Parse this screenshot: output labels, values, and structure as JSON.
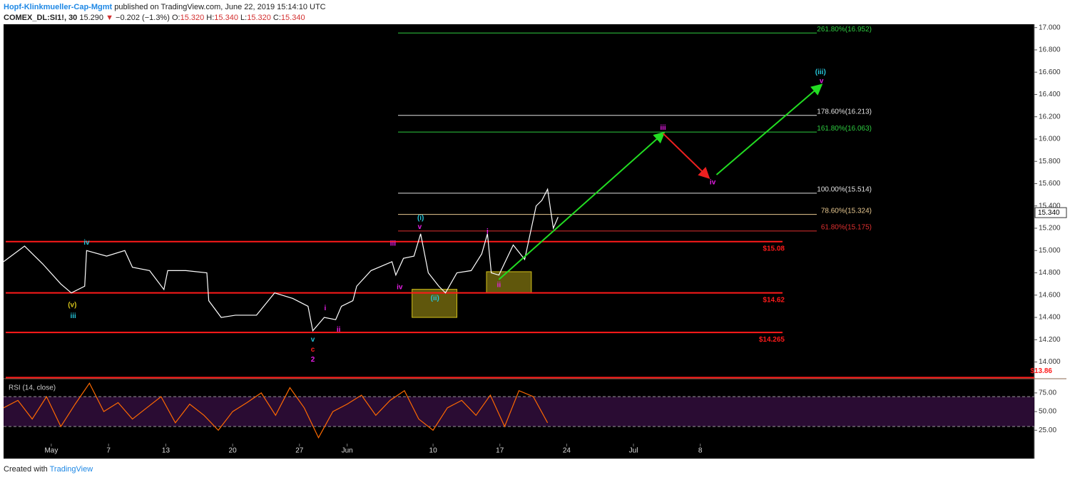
{
  "header": {
    "author": "Hopf-Klinkmueller-Cap-Mgmt",
    "published": "published on TradingView.com, June 22, 2019 15:14:10 UTC",
    "symbol": "COMEX_DL:SI1!, 30",
    "price": "15.290",
    "arrow": "▼",
    "change": "−0.202 (−1.3%)",
    "o_label": "O:",
    "o": "15.320",
    "h_label": "H:",
    "h": "15.340",
    "l_label": "L:",
    "l": "15.320",
    "c_label": "C:",
    "c": "15.340"
  },
  "footer": {
    "created": "Created with",
    "brand": "TradingView"
  },
  "chart_data": [
    {
      "type": "line",
      "color": "#ffffff",
      "x": [
        -4,
        -1.8,
        0.1,
        2,
        3.1,
        4.5,
        4.7,
        6.8,
        8.7,
        9.5,
        11.3,
        12.8,
        13.2,
        15.1,
        17.3,
        17.5,
        18.8,
        20.3,
        22.5,
        24.4,
        26.3,
        27.9,
        28.4,
        29.6,
        30.8,
        31.4,
        32.6,
        33,
        34.5,
        36.7,
        37.1,
        37.9,
        39,
        39.7,
        40.5,
        41.6,
        42.3,
        43.5,
        45,
        46.1,
        46.7,
        47.1,
        47.9,
        49.4,
        50.6,
        51.3,
        51.8,
        52.4,
        53,
        53.6,
        54.1
      ],
      "values": [
        14.9,
        15.04,
        14.88,
        14.7,
        14.62,
        14.68,
        15,
        14.95,
        15,
        14.85,
        14.82,
        14.65,
        14.82,
        14.82,
        14.8,
        14.55,
        14.4,
        14.42,
        14.42,
        14.62,
        14.57,
        14.5,
        14.28,
        14.4,
        14.38,
        14.5,
        14.55,
        14.68,
        14.82,
        14.9,
        14.78,
        14.93,
        14.95,
        15.15,
        14.8,
        14.68,
        14.62,
        14.8,
        14.82,
        14.97,
        15.15,
        14.8,
        14.78,
        15.05,
        14.92,
        15.2,
        15.4,
        15.45,
        15.55,
        15.2,
        15.3
      ],
      "xlim": [
        -4,
        104
      ],
      "ylim": [
        13.85,
        17.03
      ],
      "xticks": [
        {
          "value": 1,
          "label": "May"
        },
        7,
        13,
        20,
        27,
        {
          "value": 32,
          "label": "Jun"
        },
        {
          "value": 41,
          "label": "10"
        },
        {
          "value": 48,
          "label": "17"
        },
        {
          "value": 55,
          "label": "24"
        },
        {
          "value": 62,
          "label": "Jul"
        },
        {
          "value": 69,
          "label": "8"
        }
      ],
      "yticks": [
        {
          "value": 14,
          "label": "14.000"
        },
        {
          "value": 14.2,
          "label": "14.200"
        },
        {
          "value": 14.4,
          "label": "14.400"
        },
        {
          "value": 14.6,
          "label": "14.600"
        },
        {
          "value": 14.8,
          "label": "14.800"
        },
        {
          "value": 15,
          "label": "15.000"
        },
        {
          "value": 15.2,
          "label": "15.200"
        },
        {
          "value": 15.4,
          "label": "15.400"
        },
        {
          "value": 15.6,
          "label": "15.600"
        },
        {
          "value": 15.8,
          "label": "15.800"
        },
        {
          "value": 16,
          "label": "16.000"
        },
        {
          "value": 16.2,
          "label": "16.200"
        },
        {
          "value": 16.4,
          "label": "16.400"
        },
        {
          "value": 16.6,
          "label": "16.600"
        },
        {
          "value": 16.8,
          "label": "16.800"
        },
        {
          "value": 17,
          "label": "17.000"
        }
      ],
      "last_price": {
        "value": 15.34,
        "label": "15.340"
      },
      "fib_levels": [
        {
          "value": 16.952,
          "label": "261.80%(16.952)",
          "color": "#2ecc40"
        },
        {
          "value": 16.213,
          "label": "178.60%(16.213)",
          "color": "#e0e0e0"
        },
        {
          "value": 16.063,
          "label": "161.80%(16.063)",
          "color": "#2ecc40"
        },
        {
          "value": 15.514,
          "label": "100.00%(15.514)",
          "color": "#e0e0e0"
        },
        {
          "value": 15.324,
          "label": "78.60%(15.324)",
          "color": "#e8c890"
        },
        {
          "value": 15.175,
          "label": "61.80%(15.175)",
          "color": "#e03030"
        }
      ],
      "levels": [
        {
          "value": 15.08,
          "label": "$15.08"
        },
        {
          "value": 14.62,
          "label": "$14.62"
        },
        {
          "value": 14.265,
          "label": "$14.265"
        },
        {
          "value": 13.86,
          "label": "$13.86"
        }
      ],
      "level_color": "#ff1a1a",
      "zones": [
        {
          "x": [
            38.8,
            43.5
          ],
          "y": [
            14.4,
            14.652
          ]
        },
        {
          "x": [
            46.6,
            51.3
          ],
          "y": [
            14.62,
            14.81
          ]
        }
      ],
      "zone_color": "#d4c21a",
      "arrows": [
        {
          "color": "#22dd22",
          "x": [
            47.9,
            65.1
          ],
          "y": [
            14.74,
            16.05
          ]
        },
        {
          "color": "#ee2020",
          "x": [
            65.1,
            69.8
          ],
          "y": [
            16.05,
            15.66
          ]
        },
        {
          "color": "#22dd22",
          "x": [
            70.7,
            81.6
          ],
          "y": [
            15.68,
            16.48
          ]
        }
      ],
      "annotations": [
        {
          "text": "iv",
          "x": 4.7,
          "y": 15.07,
          "color": "#26c6da"
        },
        {
          "text": "(v)",
          "x": 3.2,
          "y": 14.51,
          "color": "#d4c21a"
        },
        {
          "text": "iii",
          "x": 3.3,
          "y": 14.41,
          "color": "#26c6da"
        },
        {
          "text": "v",
          "x": 28.4,
          "y": 14.2,
          "color": "#26c6da"
        },
        {
          "text": "c",
          "x": 28.4,
          "y": 14.11,
          "color": "#ff2020"
        },
        {
          "text": "2",
          "x": 28.4,
          "y": 14.02,
          "color": "#e91ee9"
        },
        {
          "text": "i",
          "x": 29.7,
          "y": 14.48,
          "color": "#e91ee9"
        },
        {
          "text": "ii",
          "x": 31.1,
          "y": 14.29,
          "color": "#e91ee9"
        },
        {
          "text": "iii",
          "x": 36.8,
          "y": 15.06,
          "color": "#e91ee9"
        },
        {
          "text": "iv",
          "x": 37.5,
          "y": 14.67,
          "color": "#e91ee9"
        },
        {
          "text": "(i)",
          "x": 39.7,
          "y": 15.29,
          "color": "#26c6da"
        },
        {
          "text": "v",
          "x": 39.6,
          "y": 15.21,
          "color": "#e91ee9"
        },
        {
          "text": "(ii)",
          "x": 41.2,
          "y": 14.57,
          "color": "#26c6da"
        },
        {
          "text": "i",
          "x": 46.7,
          "y": 15.17,
          "color": "#e91ee9"
        },
        {
          "text": "ii",
          "x": 47.9,
          "y": 14.69,
          "color": "#e91ee9"
        },
        {
          "text": "iii",
          "x": 65.1,
          "y": 16.1,
          "color": "#e91ee9"
        },
        {
          "text": "iv",
          "x": 70.3,
          "y": 15.61,
          "color": "#e91ee9"
        },
        {
          "text": "(iii)",
          "x": 81.6,
          "y": 16.6,
          "color": "#26c6da"
        },
        {
          "text": "v",
          "x": 81.7,
          "y": 16.52,
          "color": "#e91ee9"
        }
      ]
    },
    {
      "type": "line",
      "title": "RSI (14, close)",
      "color": "#ff6a00",
      "x": [
        -4,
        -2.5,
        -1,
        0.5,
        2,
        3.5,
        5,
        6.5,
        8,
        9.5,
        11,
        12.5,
        14,
        15.5,
        17,
        18.5,
        20,
        21.5,
        23,
        24.5,
        26,
        27.5,
        29,
        30.5,
        32,
        33.5,
        35,
        36.5,
        38,
        39.5,
        41,
        42.5,
        44,
        45.5,
        47,
        48.5,
        50,
        51.5,
        53
      ],
      "values": [
        55,
        65,
        40,
        70,
        30,
        60,
        88,
        50,
        62,
        40,
        55,
        70,
        35,
        60,
        45,
        25,
        50,
        62,
        75,
        45,
        82,
        55,
        15,
        50,
        60,
        72,
        45,
        65,
        78,
        40,
        25,
        55,
        65,
        45,
        72,
        30,
        78,
        70,
        35
      ],
      "xlim": [
        -4,
        104
      ],
      "ylim": [
        9,
        94
      ],
      "yticks": [
        {
          "value": 25,
          "label": "25.00"
        },
        {
          "value": 50,
          "label": "50.00"
        },
        {
          "value": 75,
          "label": "75.00"
        }
      ],
      "band": [
        30,
        70
      ],
      "band_color": "#2a0c33"
    }
  ]
}
